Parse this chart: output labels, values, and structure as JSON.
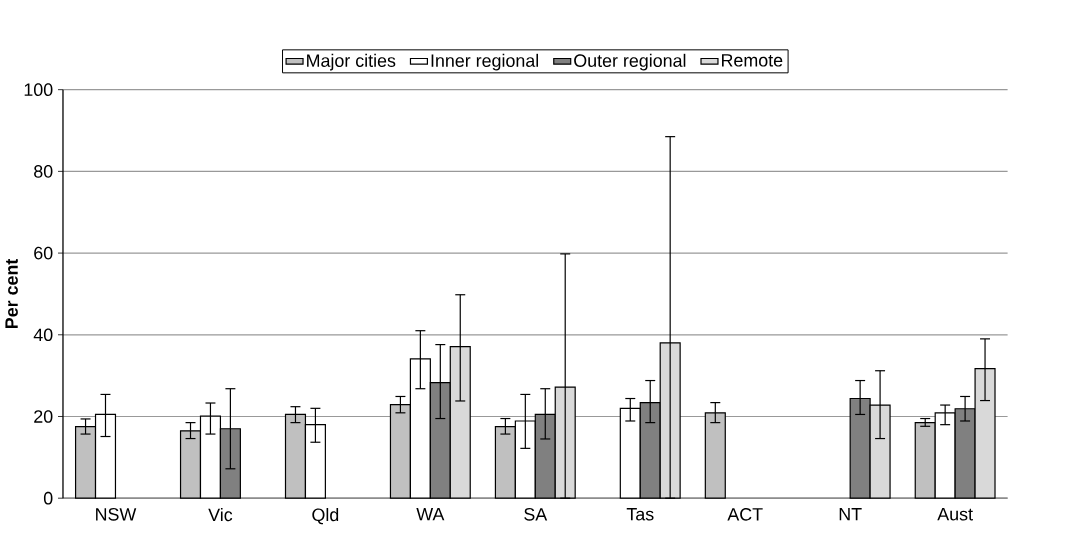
{
  "chart_data": {
    "type": "bar",
    "ylabel": "Per cent",
    "categories": [
      "NSW",
      "Vic",
      "Qld",
      "WA",
      "SA",
      "Tas",
      "ACT",
      "NT",
      "Aust"
    ],
    "series": [
      {
        "name": "Major cities",
        "color": "#c0c0c0",
        "values": [
          17.5,
          16.5,
          20.5,
          22.9,
          17.5,
          null,
          20.9,
          null,
          18.5
        ],
        "errors": [
          [
            15.7,
            19.4
          ],
          [
            14.6,
            18.5
          ],
          [
            18.5,
            22.4
          ],
          [
            20.9,
            24.9
          ],
          [
            15.7,
            19.5
          ],
          null,
          [
            18.5,
            23.4
          ],
          null,
          [
            17.6,
            19.5
          ]
        ]
      },
      {
        "name": "Inner regional",
        "color": "#ffffff",
        "values": [
          20.5,
          20.1,
          18.0,
          34.1,
          18.9,
          22.0,
          null,
          null,
          20.9
        ],
        "errors": [
          [
            15.1,
            25.4
          ],
          [
            15.7,
            23.3
          ],
          [
            13.7,
            22.0
          ],
          [
            26.8,
            41.0
          ],
          [
            12.2,
            25.4
          ],
          [
            18.9,
            24.4
          ],
          null,
          null,
          [
            18.0,
            22.8
          ]
        ]
      },
      {
        "name": "Outer regional",
        "color": "#808080",
        "values": [
          null,
          17.0,
          null,
          28.3,
          20.5,
          23.4,
          null,
          24.4,
          21.9
        ],
        "errors": [
          null,
          [
            7.2,
            26.8
          ],
          null,
          [
            19.5,
            37.6
          ],
          [
            14.5,
            26.8
          ],
          [
            18.5,
            28.8
          ],
          null,
          [
            20.5,
            28.8
          ],
          [
            18.9,
            24.9
          ]
        ]
      },
      {
        "name": "Remote",
        "color": "#d9d9d9",
        "values": [
          null,
          null,
          null,
          37.1,
          27.2,
          38.0,
          null,
          22.8,
          31.7
        ],
        "errors": [
          null,
          null,
          null,
          [
            23.8,
            49.8
          ],
          [
            0,
            59.8
          ],
          [
            0,
            88.5
          ],
          null,
          [
            14.6,
            31.2
          ],
          [
            23.9,
            39.0
          ]
        ]
      }
    ],
    "ylim": [
      0,
      100
    ],
    "yticks": [
      0,
      20,
      40,
      60,
      80,
      100
    ],
    "grid": "y",
    "legend": "top"
  }
}
